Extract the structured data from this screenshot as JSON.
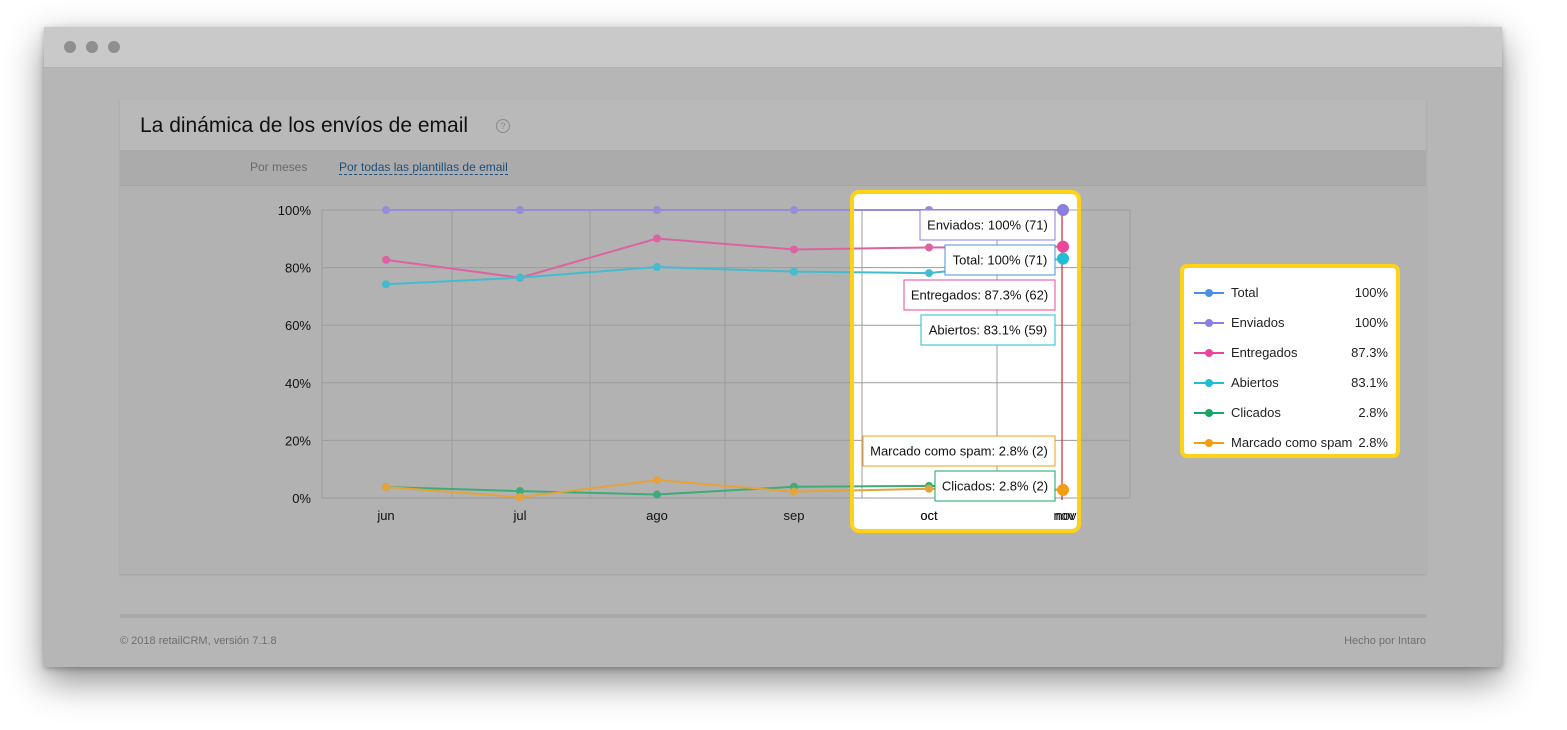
{
  "panel": {
    "title": "La dinámica de los envíos de email",
    "help_icon": "question-icon",
    "filter_period": "Por meses",
    "filter_template": "Por todas las plantillas de email"
  },
  "footer": {
    "copyright": "© 2018 retailCRM, versión 7.1.8",
    "made_by": "Hecho por Intaro"
  },
  "chart_data": {
    "type": "line",
    "categories": [
      "jun",
      "jul",
      "ago",
      "sep",
      "oct",
      "nov"
    ],
    "y_ticks": [
      "0%",
      "20%",
      "40%",
      "60%",
      "80%",
      "100%"
    ],
    "ylim": [
      0,
      100
    ],
    "grid": true,
    "legend_position": "right",
    "series": [
      {
        "name": "Total",
        "color": "#4a90e2",
        "values": [
          100,
          100,
          100,
          100,
          100,
          100
        ],
        "legend_value": "100%"
      },
      {
        "name": "Enviados",
        "color": "#8a7fe0",
        "values": [
          100,
          100,
          100,
          100,
          100,
          100
        ],
        "legend_value": "100%"
      },
      {
        "name": "Entregados",
        "color": "#e8479b",
        "values": [
          82.7,
          76.5,
          90.1,
          86.3,
          87.0,
          87.3
        ],
        "legend_value": "87.3%"
      },
      {
        "name": "Abiertos",
        "color": "#1fbdd6",
        "values": [
          74.2,
          76.5,
          80.2,
          78.6,
          78.1,
          83.1
        ],
        "legend_value": "83.1%"
      },
      {
        "name": "Clicados",
        "color": "#16a765",
        "values": [
          3.8,
          2.4,
          1.2,
          3.9,
          4.2,
          2.8
        ],
        "legend_value": "2.8%"
      },
      {
        "name": "Marcado como spam",
        "color": "#f39c12",
        "values": [
          3.8,
          0.3,
          6.2,
          2.2,
          3.2,
          2.8
        ],
        "legend_value": "2.8%"
      }
    ],
    "tooltip": {
      "category": "nov",
      "entries": [
        {
          "text": "Enviados: 100% (71)",
          "series": "Enviados"
        },
        {
          "text": "Total: 100% (71)",
          "series": "Total"
        },
        {
          "text": "Entregados: 87.3% (62)",
          "series": "Entregados"
        },
        {
          "text": "Abiertos: 83.1% (59)",
          "series": "Abiertos"
        },
        {
          "text": "Marcado como spam: 2.8% (2)",
          "series": "Marcado como spam"
        },
        {
          "text": "Clicados: 2.8% (2)",
          "series": "Clicados"
        }
      ]
    }
  }
}
